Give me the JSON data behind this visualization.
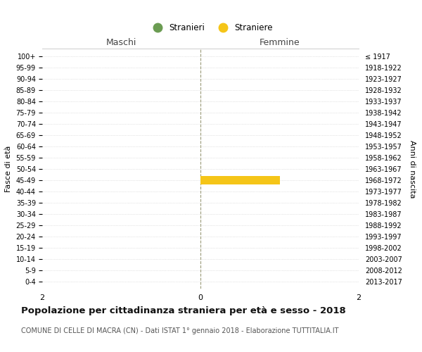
{
  "age_groups": [
    "100+",
    "95-99",
    "90-94",
    "85-89",
    "80-84",
    "75-79",
    "70-74",
    "65-69",
    "60-64",
    "55-59",
    "50-54",
    "45-49",
    "40-44",
    "35-39",
    "30-34",
    "25-29",
    "20-24",
    "15-19",
    "10-14",
    "5-9",
    "0-4"
  ],
  "birth_years": [
    "≤ 1917",
    "1918-1922",
    "1923-1927",
    "1928-1932",
    "1933-1937",
    "1938-1942",
    "1943-1947",
    "1948-1952",
    "1953-1957",
    "1958-1962",
    "1963-1967",
    "1968-1972",
    "1973-1977",
    "1978-1982",
    "1983-1987",
    "1988-1992",
    "1993-1997",
    "1998-2002",
    "2003-2007",
    "2008-2012",
    "2013-2017"
  ],
  "maschi_values": [
    0,
    0,
    0,
    0,
    0,
    0,
    0,
    0,
    0,
    0,
    0,
    0,
    0,
    0,
    0,
    0,
    0,
    0,
    0,
    0,
    0
  ],
  "femmine_values": [
    0,
    0,
    0,
    0,
    0,
    0,
    0,
    0,
    0,
    0,
    0,
    1,
    0,
    0,
    0,
    0,
    0,
    0,
    0,
    0,
    0
  ],
  "stranieri_color": "#6b9c52",
  "straniere_color": "#f5c518",
  "xlim": 2,
  "title": "Popolazione per cittadinanza straniera per età e sesso - 2018",
  "subtitle": "COMUNE DI CELLE DI MACRA (CN) - Dati ISTAT 1° gennaio 2018 - Elaborazione TUTTITALIA.IT",
  "ylabel_left": "Fasce di età",
  "ylabel_right": "Anni di nascita",
  "maschi_label": "Maschi",
  "femmine_label": "Femmine",
  "legend_stranieri": "Stranieri",
  "legend_straniere": "Straniere",
  "bg_color": "#ffffff",
  "grid_color": "#cccccc",
  "center_line_color": "#999977"
}
